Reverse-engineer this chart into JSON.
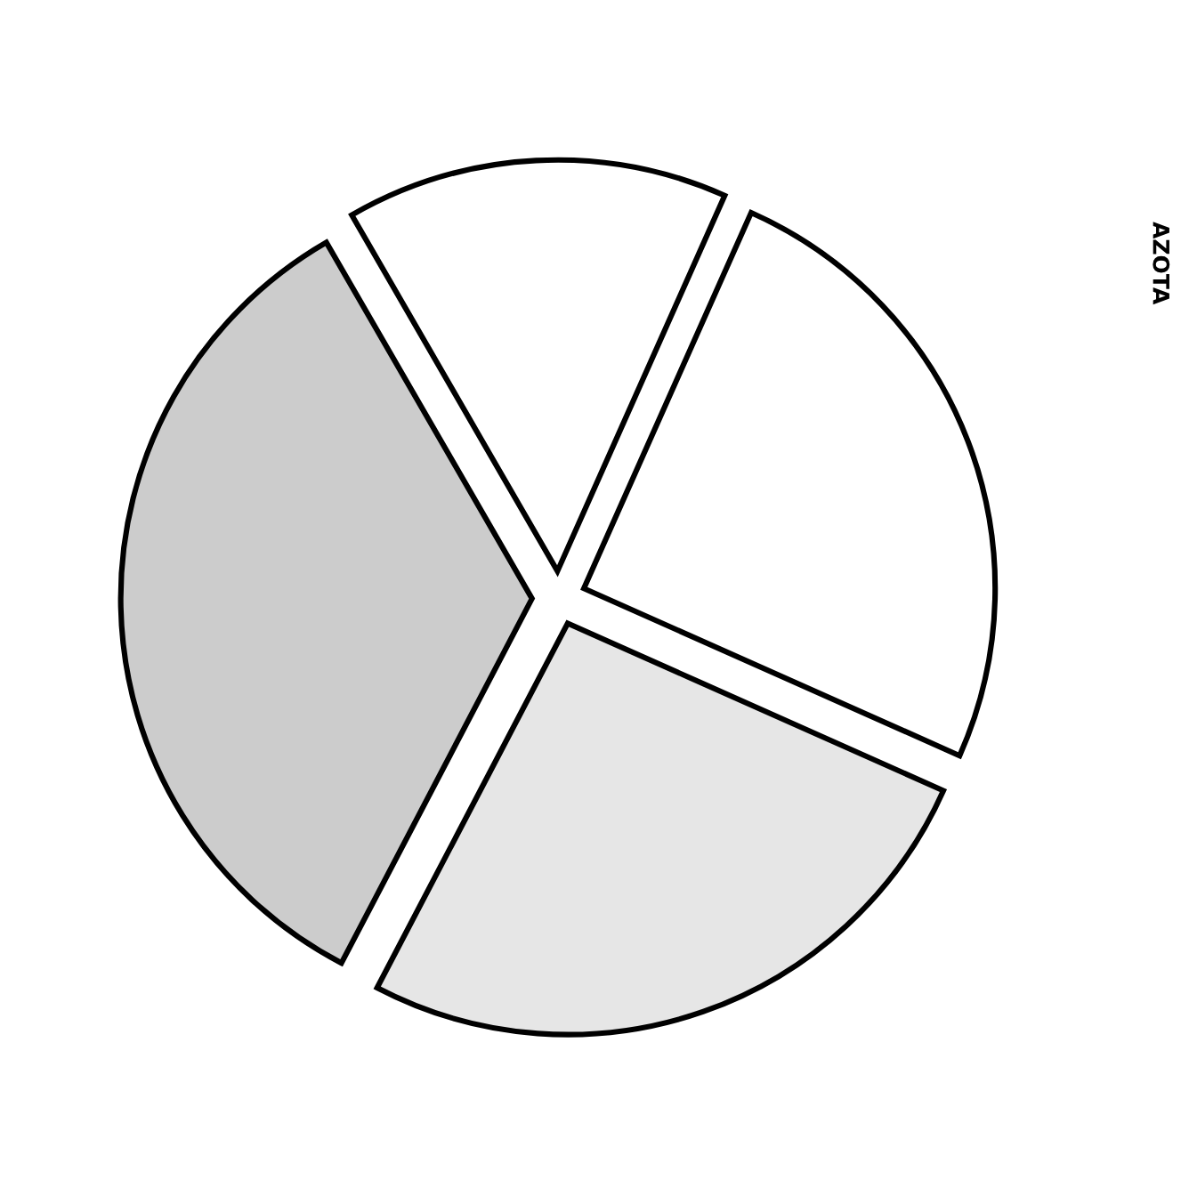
{
  "chart_data": {
    "type": "pie",
    "categories": [
      null,
      null,
      null,
      null
    ],
    "values": [
      15,
      25,
      26,
      34
    ],
    "colors": [
      "#ffffff",
      "#ffffff",
      "#e6e6e6",
      "#cccccc"
    ],
    "annotations": [
      "AZOTA"
    ]
  }
}
